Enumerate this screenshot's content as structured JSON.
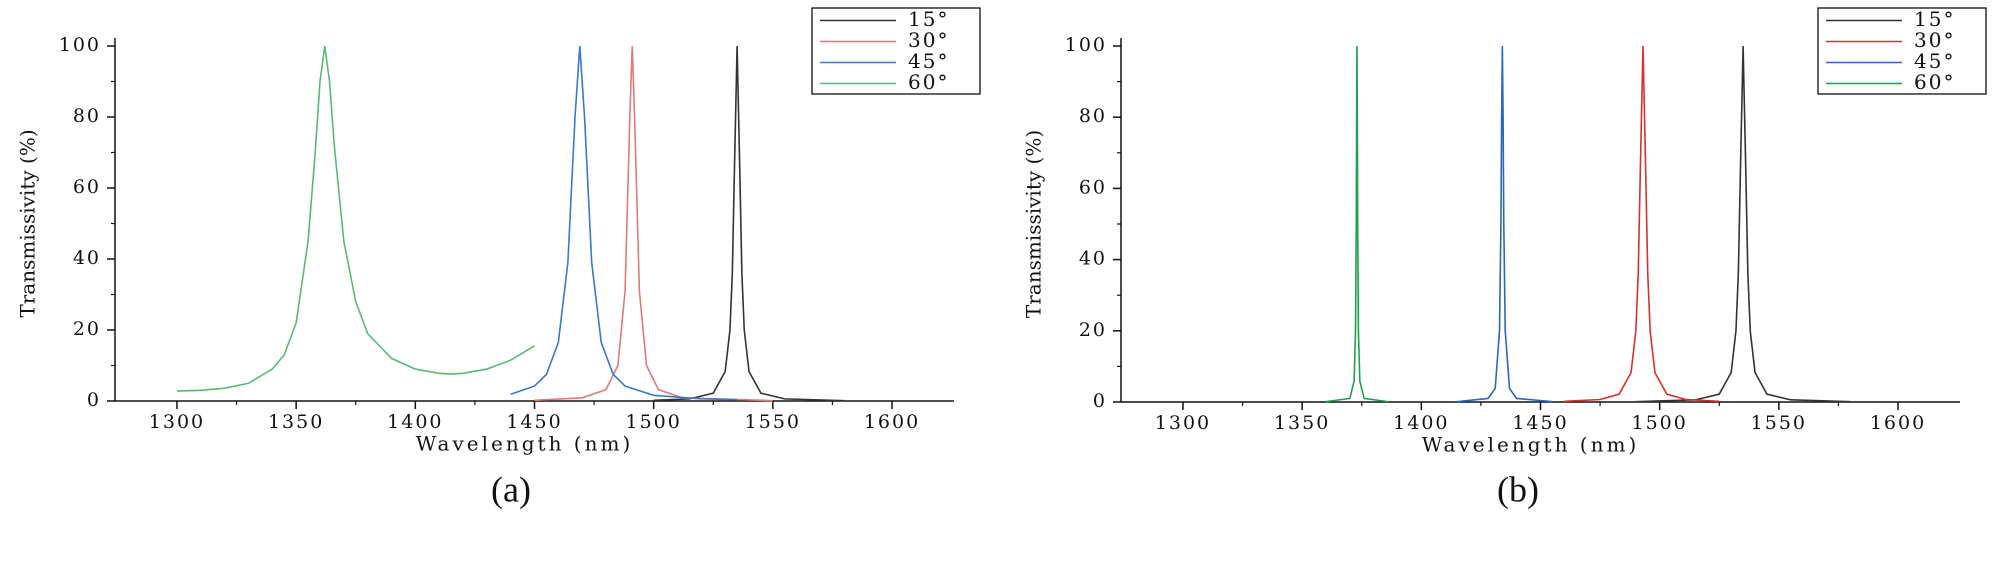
{
  "chart_data": [
    {
      "type": "line",
      "panel_label": "(a)",
      "xlabel": "Wavelength (nm)",
      "ylabel": "Transmissivity (%)",
      "xlim": [
        1274,
        1626
      ],
      "ylim": [
        0,
        100
      ],
      "xticks": [
        1300,
        1350,
        1400,
        1450,
        1500,
        1550,
        1600
      ],
      "yticks": [
        0,
        20,
        40,
        60,
        80,
        100
      ],
      "legend": "upper right",
      "series": [
        {
          "name": "15°",
          "color": "#333333",
          "x": [
            1500,
            1515,
            1525,
            1530,
            1532,
            1533,
            1534,
            1535,
            1536,
            1537,
            1538,
            1540,
            1545,
            1555,
            1580
          ],
          "values": [
            0.2,
            0.6,
            2.2,
            8.3,
            20,
            36,
            69,
            100,
            69,
            36,
            20,
            8.3,
            2.2,
            0.6,
            0.1
          ]
        },
        {
          "name": "30°",
          "color": "#e07a7a",
          "x": [
            1450,
            1470,
            1480,
            1485,
            1488,
            1490,
            1491,
            1492,
            1494,
            1497,
            1502,
            1512,
            1550
          ],
          "values": [
            0.2,
            0.9,
            3.2,
            10,
            31,
            80,
            100,
            80,
            31,
            10,
            3.2,
            0.9,
            0.1
          ]
        },
        {
          "name": "45°",
          "color": "#3a78c8",
          "x": [
            1440,
            1450,
            1455,
            1460,
            1464,
            1467,
            1469,
            1471,
            1474,
            1478,
            1483,
            1488,
            1500,
            1520,
            1535
          ],
          "values": [
            1.9,
            4.2,
            7.5,
            16.5,
            39,
            80,
            100,
            80,
            39,
            16.5,
            7.5,
            4.2,
            1.6,
            0.6,
            0.4
          ]
        },
        {
          "name": "60°",
          "color": "#5cb87a",
          "x": [
            1300,
            1310,
            1320,
            1330,
            1340,
            1345,
            1350,
            1355,
            1358,
            1360,
            1362,
            1364,
            1366,
            1370,
            1375,
            1380,
            1390,
            1400,
            1410,
            1415,
            1420,
            1430,
            1440,
            1450
          ],
          "values": [
            2.8,
            3,
            3.6,
            5,
            9,
            13,
            22,
            45,
            70,
            90,
            100,
            90,
            72,
            45,
            28,
            19,
            12,
            9,
            7.8,
            7.6,
            7.8,
            9,
            11.5,
            15.5
          ]
        }
      ]
    },
    {
      "type": "line",
      "panel_label": "(b)",
      "xlabel": "Wavelength (nm)",
      "ylabel": "Transmissivity (%)",
      "xlim": [
        1274,
        1626
      ],
      "ylim": [
        0,
        100
      ],
      "xticks": [
        1300,
        1350,
        1400,
        1450,
        1500,
        1550,
        1600
      ],
      "yticks": [
        0,
        20,
        40,
        60,
        80,
        100
      ],
      "legend": "upper right",
      "series": [
        {
          "name": "15°",
          "color": "#333333",
          "x": [
            1490,
            1515,
            1525,
            1530,
            1532,
            1533,
            1534,
            1535,
            1536,
            1537,
            1538,
            1540,
            1545,
            1555,
            1580
          ],
          "values": [
            0.1,
            0.6,
            2.2,
            8.3,
            20,
            36,
            69,
            100,
            69,
            36,
            20,
            8.3,
            2.2,
            0.6,
            0.1
          ]
        },
        {
          "name": "30°",
          "color": "#d83030",
          "x": [
            1460,
            1475,
            1483,
            1488,
            1490,
            1491,
            1492,
            1493,
            1494,
            1495,
            1496,
            1498,
            1503,
            1511,
            1525
          ],
          "values": [
            0.2,
            0.7,
            2.2,
            8.3,
            20,
            36,
            69,
            100,
            69,
            36,
            20,
            8.3,
            2.2,
            0.7,
            0.2
          ]
        },
        {
          "name": "45°",
          "color": "#2a66c0",
          "x": [
            1415,
            1428,
            1431,
            1432.8,
            1433.4,
            1433.7,
            1434,
            1434.3,
            1434.6,
            1435.2,
            1437,
            1440,
            1455
          ],
          "values": [
            0.1,
            1,
            3.8,
            20,
            50,
            80,
            100,
            80,
            50,
            20,
            3.8,
            1,
            0.1
          ]
        },
        {
          "name": "60°",
          "color": "#20a050",
          "x": [
            1360,
            1370,
            1371.8,
            1372.4,
            1372.7,
            1372.85,
            1373,
            1373.15,
            1373.3,
            1373.6,
            1374.2,
            1376,
            1386
          ],
          "values": [
            0.1,
            1,
            5.9,
            20,
            50,
            80,
            100,
            80,
            50,
            20,
            5.9,
            1,
            0.1
          ]
        }
      ]
    }
  ]
}
